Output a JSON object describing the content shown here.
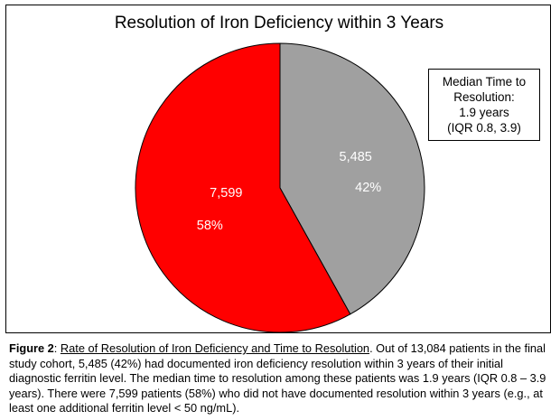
{
  "chart_data": {
    "type": "pie",
    "title": "Resolution of Iron Deficiency within 3 Years",
    "slices": [
      {
        "value": 5485,
        "value_label": "5,485",
        "percent_label": "42%",
        "color": "#a0a0a0"
      },
      {
        "value": 7599,
        "value_label": "7,599",
        "percent_label": "58%",
        "color": "#ff0000"
      }
    ],
    "annotation": [
      "Median Time to",
      "Resolution:",
      "1.9 years",
      "(IQR 0.8, 3.9)"
    ]
  },
  "caption": {
    "label": "Figure 2",
    "sep": ": ",
    "title": "Rate of Resolution of Iron Deficiency and Time to Resolution",
    "body": ". Out of 13,084 patients in the final study cohort,  5,485 (42%) had documented iron deficiency resolution within 3 years of their initial diagnostic ferritin level. The median time to resolution among these patients was 1.9 years (IQR 0.8 – 3.9 years). There were 7,599 patients (58%) who did not have documented resolution within 3 years (e.g., at least one additional ferritin level < 50 ng/mL)."
  }
}
